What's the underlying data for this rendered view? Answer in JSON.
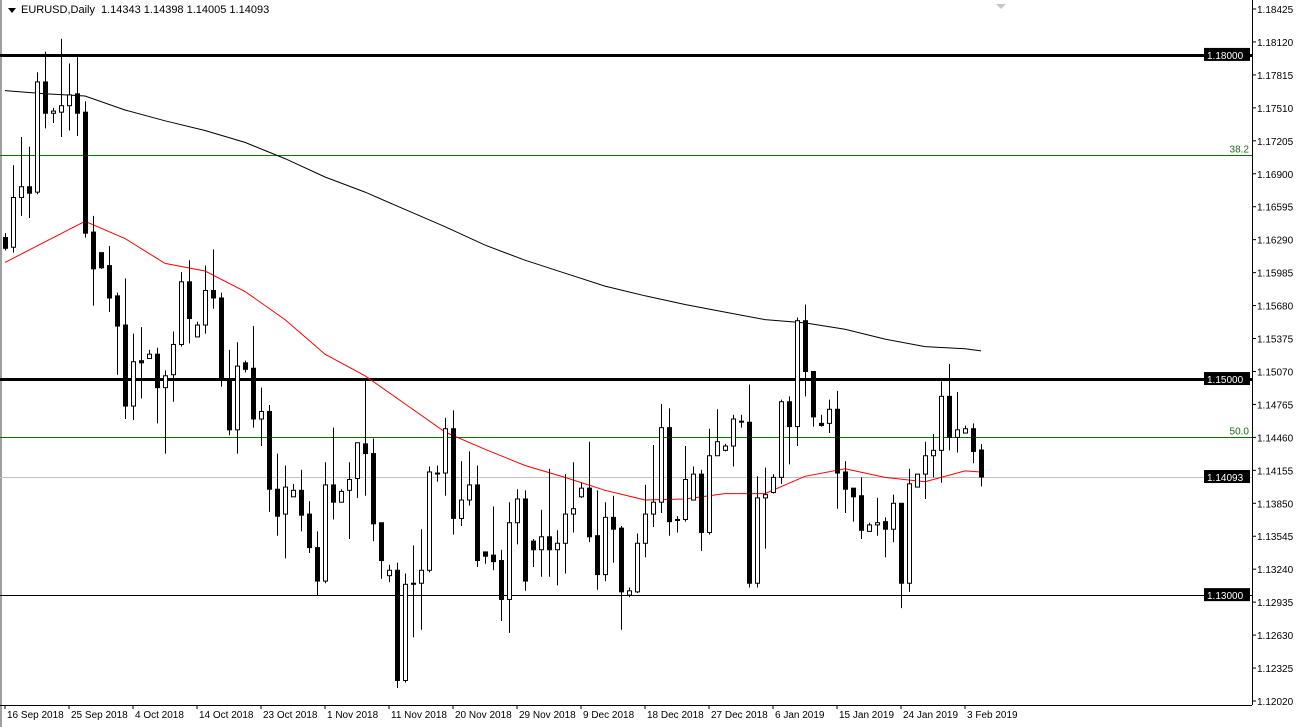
{
  "header": {
    "symbol_timeframe": "EURUSD,Daily",
    "ohlc": "1.14343 1.14398 1.14005 1.14093",
    "menu_icon": "triangle-down-icon"
  },
  "chart_data": {
    "type": "candlestick",
    "symbol": "EURUSD",
    "timeframe": "Daily",
    "ylim": [
      1.1202,
      1.18425
    ],
    "grid": false,
    "y_ticks": [
      "1.18425",
      "1.18120",
      "1.17815",
      "1.17510",
      "1.17205",
      "1.16900",
      "1.16595",
      "1.16290",
      "1.15985",
      "1.15680",
      "1.15375",
      "1.15070",
      "1.14765",
      "1.14460",
      "1.14155",
      "1.13850",
      "1.13545",
      "1.13240",
      "1.12935",
      "1.12630",
      "1.12325",
      "1.12020"
    ],
    "x_ticks": [
      "16 Sep 2018",
      "25 Sep 2018",
      "4 Oct 2018",
      "14 Oct 2018",
      "23 Oct 2018",
      "1 Nov 2018",
      "11 Nov 2018",
      "20 Nov 2018",
      "29 Nov 2018",
      "9 Dec 2018",
      "18 Dec 2018",
      "27 Dec 2018",
      "6 Jan 2019",
      "15 Jan 2019",
      "24 Jan 2019",
      "3 Feb 2019"
    ],
    "candle_fields": [
      "open",
      "high",
      "low",
      "close"
    ],
    "candles": [
      [
        1.1631,
        1.1635,
        1.1619,
        1.1621
      ],
      [
        1.1622,
        1.1698,
        1.1617,
        1.1668
      ],
      [
        1.1668,
        1.1724,
        1.1651,
        1.1678
      ],
      [
        1.1678,
        1.1715,
        1.1649,
        1.1672
      ],
      [
        1.1673,
        1.1784,
        1.1671,
        1.1775
      ],
      [
        1.1775,
        1.1803,
        1.1732,
        1.1746
      ],
      [
        1.1746,
        1.1751,
        1.1737,
        1.1748
      ],
      [
        1.1747,
        1.1815,
        1.1724,
        1.1753
      ],
      [
        1.1753,
        1.1792,
        1.173,
        1.1763
      ],
      [
        1.1764,
        1.1798,
        1.1725,
        1.1746
      ],
      [
        1.1747,
        1.1757,
        1.1631,
        1.1635
      ],
      [
        1.1636,
        1.1651,
        1.1568,
        1.1602
      ],
      [
        1.1617,
        1.1617,
        1.1602,
        1.1603
      ],
      [
        1.1605,
        1.1623,
        1.1562,
        1.1575
      ],
      [
        1.1577,
        1.158,
        1.1504,
        1.1549
      ],
      [
        1.155,
        1.1593,
        1.1463,
        1.1475
      ],
      [
        1.1475,
        1.1542,
        1.1462,
        1.1516
      ],
      [
        1.1517,
        1.1548,
        1.1482,
        1.1515
      ],
      [
        1.1519,
        1.1527,
        1.1519,
        1.1523
      ],
      [
        1.1523,
        1.1529,
        1.1459,
        1.1492
      ],
      [
        1.1492,
        1.1508,
        1.1431,
        1.1503
      ],
      [
        1.1504,
        1.1544,
        1.1479,
        1.1532
      ],
      [
        1.1532,
        1.1599,
        1.153,
        1.159
      ],
      [
        1.159,
        1.161,
        1.1533,
        1.1556
      ],
      [
        1.1539,
        1.1553,
        1.1539,
        1.155
      ],
      [
        1.155,
        1.1605,
        1.1542,
        1.1582
      ],
      [
        1.1582,
        1.162,
        1.1565,
        1.1575
      ],
      [
        1.1575,
        1.158,
        1.1493,
        1.15
      ],
      [
        1.15,
        1.1527,
        1.1448,
        1.1453
      ],
      [
        1.1453,
        1.1534,
        1.1431,
        1.1512
      ],
      [
        1.1515,
        1.1517,
        1.1506,
        1.1509
      ],
      [
        1.151,
        1.1549,
        1.1455,
        1.1463
      ],
      [
        1.1463,
        1.1492,
        1.1438,
        1.147
      ],
      [
        1.147,
        1.1476,
        1.1377,
        1.1398
      ],
      [
        1.1398,
        1.1431,
        1.1355,
        1.1373
      ],
      [
        1.1375,
        1.142,
        1.1334,
        1.14
      ],
      [
        1.1391,
        1.1403,
        1.1391,
        1.1397
      ],
      [
        1.1397,
        1.1416,
        1.1359,
        1.1374
      ],
      [
        1.1375,
        1.1387,
        1.1339,
        1.1344
      ],
      [
        1.1344,
        1.1359,
        1.13,
        1.1313
      ],
      [
        1.1313,
        1.1423,
        1.1311,
        1.1402
      ],
      [
        1.1402,
        1.1455,
        1.137,
        1.1386
      ],
      [
        1.1386,
        1.1398,
        1.1386,
        1.1396
      ],
      [
        1.1397,
        1.1423,
        1.1352,
        1.1407
      ],
      [
        1.1408,
        1.1441,
        1.139,
        1.1441
      ],
      [
        1.144,
        1.15,
        1.1392,
        1.1431
      ],
      [
        1.1431,
        1.1445,
        1.135,
        1.1366
      ],
      [
        1.1367,
        1.1367,
        1.1315,
        1.1332
      ],
      [
        1.1318,
        1.1328,
        1.1312,
        1.1323
      ],
      [
        1.1323,
        1.133,
        1.1214,
        1.1221
      ],
      [
        1.1221,
        1.132,
        1.1219,
        1.131
      ],
      [
        1.1311,
        1.1346,
        1.1261,
        1.131
      ],
      [
        1.1311,
        1.1361,
        1.1268,
        1.1323
      ],
      [
        1.1323,
        1.1419,
        1.1321,
        1.1414
      ],
      [
        1.1413,
        1.142,
        1.1405,
        1.1413
      ],
      [
        1.1413,
        1.1464,
        1.1392,
        1.1454
      ],
      [
        1.1454,
        1.1471,
        1.1356,
        1.1371
      ],
      [
        1.1371,
        1.1424,
        1.1364,
        1.1388
      ],
      [
        1.1388,
        1.1433,
        1.1383,
        1.1402
      ],
      [
        1.1402,
        1.142,
        1.1326,
        1.1332
      ],
      [
        1.134,
        1.134,
        1.1329,
        1.1336
      ],
      [
        1.1337,
        1.1382,
        1.1323,
        1.1331
      ],
      [
        1.1332,
        1.1342,
        1.1276,
        1.1296
      ],
      [
        1.1296,
        1.1386,
        1.1265,
        1.1367
      ],
      [
        1.1367,
        1.1398,
        1.1347,
        1.1389
      ],
      [
        1.1389,
        1.1397,
        1.1304,
        1.1313
      ],
      [
        1.135,
        1.1352,
        1.1326,
        1.1342
      ],
      [
        1.1342,
        1.1379,
        1.1317,
        1.1354
      ],
      [
        1.1354,
        1.1417,
        1.1317,
        1.1342
      ],
      [
        1.1342,
        1.136,
        1.1309,
        1.1348
      ],
      [
        1.1348,
        1.1412,
        1.132,
        1.1375
      ],
      [
        1.1375,
        1.1423,
        1.1358,
        1.138
      ],
      [
        1.1391,
        1.1404,
        1.139,
        1.1399
      ],
      [
        1.1399,
        1.1442,
        1.1349,
        1.1354
      ],
      [
        1.1355,
        1.1397,
        1.1305,
        1.1319
      ],
      [
        1.1319,
        1.1386,
        1.1313,
        1.1372
      ],
      [
        1.1372,
        1.1392,
        1.133,
        1.1361
      ],
      [
        1.1362,
        1.1364,
        1.1268,
        1.1303
      ],
      [
        1.13,
        1.1307,
        1.1298,
        1.1304
      ],
      [
        1.1303,
        1.1357,
        1.1302,
        1.1348
      ],
      [
        1.1348,
        1.1402,
        1.1335,
        1.1375
      ],
      [
        1.1375,
        1.1439,
        1.1363,
        1.1386
      ],
      [
        1.1386,
        1.1477,
        1.1376,
        1.1455
      ],
      [
        1.1455,
        1.1473,
        1.1355,
        1.1368
      ],
      [
        1.137,
        1.1373,
        1.1358,
        1.137
      ],
      [
        1.137,
        1.1438,
        1.1368,
        1.1407
      ],
      [
        1.1388,
        1.1419,
        1.1388,
        1.1412
      ],
      [
        1.1412,
        1.1416,
        1.1341,
        1.1358
      ],
      [
        1.1358,
        1.1454,
        1.1356,
        1.1429
      ],
      [
        1.1429,
        1.1472,
        1.1429,
        1.1442
      ],
      [
        1.1434,
        1.144,
        1.1433,
        1.1438
      ],
      [
        1.1438,
        1.1467,
        1.1419,
        1.1463
      ],
      [
        1.1461,
        1.1467,
        1.1455,
        1.1461
      ],
      [
        1.146,
        1.1495,
        1.1307,
        1.1311
      ],
      [
        1.1311,
        1.141,
        1.1307,
        1.139
      ],
      [
        1.139,
        1.1418,
        1.1343,
        1.1393
      ],
      [
        1.1395,
        1.1412,
        1.1394,
        1.1409
      ],
      [
        1.1409,
        1.1481,
        1.1403,
        1.1479
      ],
      [
        1.1479,
        1.1484,
        1.1421,
        1.1456
      ],
      [
        1.1456,
        1.1557,
        1.1438,
        1.1554
      ],
      [
        1.1554,
        1.1569,
        1.1484,
        1.1507
      ],
      [
        1.1507,
        1.1507,
        1.1456,
        1.1465
      ],
      [
        1.1459,
        1.1467,
        1.1456,
        1.1457
      ],
      [
        1.1459,
        1.1481,
        1.145,
        1.1472
      ],
      [
        1.1472,
        1.1489,
        1.138,
        1.1413
      ],
      [
        1.1414,
        1.1424,
        1.1376,
        1.1398
      ],
      [
        1.1399,
        1.1399,
        1.1368,
        1.1391
      ],
      [
        1.1392,
        1.1409,
        1.1352,
        1.136
      ],
      [
        1.1359,
        1.1367,
        1.1359,
        1.1365
      ],
      [
        1.1365,
        1.139,
        1.1355,
        1.1367
      ],
      [
        1.1368,
        1.1372,
        1.1335,
        1.1361
      ],
      [
        1.1361,
        1.1393,
        1.1349,
        1.1385
      ],
      [
        1.1385,
        1.1385,
        1.1288,
        1.1311
      ],
      [
        1.1311,
        1.1417,
        1.1303,
        1.1403
      ],
      [
        1.14,
        1.1412,
        1.14,
        1.1412
      ],
      [
        1.1412,
        1.1442,
        1.1389,
        1.1429
      ],
      [
        1.1429,
        1.1449,
        1.1409,
        1.1434
      ],
      [
        1.1434,
        1.1498,
        1.1404,
        1.1484
      ],
      [
        1.1484,
        1.1514,
        1.1434,
        1.1446
      ],
      [
        1.1446,
        1.1488,
        1.1432,
        1.1453
      ],
      [
        1.145,
        1.1457,
        1.145,
        1.1454
      ],
      [
        1.1454,
        1.1459,
        1.1422,
        1.1433
      ],
      [
        1.14343,
        1.14398,
        1.14005,
        1.14093
      ]
    ],
    "moving_averages": [
      {
        "color": "#000000",
        "points": [
          [
            0,
            1.1767
          ],
          [
            5,
            1.1764
          ],
          [
            10,
            1.1762
          ],
          [
            15,
            1.1749
          ],
          [
            20,
            1.1739
          ],
          [
            25,
            1.173
          ],
          [
            30,
            1.1719
          ],
          [
            35,
            1.1704
          ],
          [
            40,
            1.1687
          ],
          [
            45,
            1.1673
          ],
          [
            50,
            1.1657
          ],
          [
            55,
            1.1641
          ],
          [
            60,
            1.1624
          ],
          [
            65,
            1.161
          ],
          [
            70,
            1.1598
          ],
          [
            75,
            1.1586
          ],
          [
            80,
            1.1577
          ],
          [
            85,
            1.1569
          ],
          [
            90,
            1.1562
          ],
          [
            95,
            1.1555
          ],
          [
            100,
            1.1552
          ],
          [
            105,
            1.1546
          ],
          [
            110,
            1.1537
          ],
          [
            115,
            1.153
          ],
          [
            120,
            1.1528
          ],
          [
            122,
            1.1526
          ]
        ]
      },
      {
        "color": "#ff0000",
        "points": [
          [
            0,
            1.1608
          ],
          [
            5,
            1.1627
          ],
          [
            10,
            1.1646
          ],
          [
            15,
            1.163
          ],
          [
            20,
            1.1607
          ],
          [
            25,
            1.16
          ],
          [
            30,
            1.1581
          ],
          [
            35,
            1.1555
          ],
          [
            40,
            1.1523
          ],
          [
            45,
            1.1503
          ],
          [
            50,
            1.1477
          ],
          [
            55,
            1.1451
          ],
          [
            60,
            1.1435
          ],
          [
            65,
            1.142
          ],
          [
            70,
            1.1409
          ],
          [
            75,
            1.1397
          ],
          [
            80,
            1.1388
          ],
          [
            85,
            1.1389
          ],
          [
            90,
            1.1394
          ],
          [
            95,
            1.1394
          ],
          [
            100,
            1.141
          ],
          [
            105,
            1.1417
          ],
          [
            110,
            1.1409
          ],
          [
            115,
            1.1405
          ],
          [
            120,
            1.1415
          ],
          [
            122,
            1.1414
          ]
        ]
      }
    ],
    "levels": [
      {
        "price": 1.18,
        "label": "1.18000",
        "color": "#000000",
        "style": "thick"
      },
      {
        "price": 1.15,
        "label": "1.15000",
        "color": "#000000",
        "style": "thick"
      },
      {
        "price": 1.13,
        "label": "1.13000",
        "color": "#000000",
        "style": "thin"
      }
    ],
    "fib_levels": [
      {
        "price": 1.1707,
        "label": "38.2",
        "color": "#007800"
      },
      {
        "price": 1.1446,
        "label": "50.0",
        "color": "#007800"
      }
    ],
    "current_price": {
      "price": 1.14093,
      "label": "1.14093",
      "color": "#c0c0c0"
    },
    "colors": {
      "bull_body": "#ffffff",
      "bear_body": "#000000",
      "outline": "#000000",
      "background": "#ffffff"
    }
  }
}
